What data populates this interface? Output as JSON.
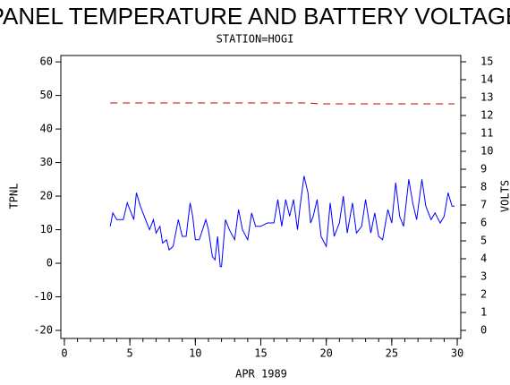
{
  "chart_data": {
    "type": "line",
    "title": "PANEL TEMPERATURE AND BATTERY VOLTAGE",
    "subtitle": "STATION=HOGI",
    "x_label": "APR 1989",
    "y_label": "TPNL",
    "y2_label": "VOLTS",
    "xlim": [
      -0.27,
      30.27
    ],
    "xticks": [
      0,
      5,
      10,
      15,
      20,
      25,
      30
    ],
    "xminorticks": [
      0,
      1,
      2,
      3,
      4,
      5,
      6,
      7,
      8,
      9,
      10,
      11,
      12,
      13,
      14,
      15,
      16,
      17,
      18,
      19,
      20,
      21,
      22,
      23,
      24,
      25,
      26,
      27,
      28,
      29,
      30
    ],
    "ylim": [
      -22.4,
      61.9
    ],
    "yticks": [
      -20,
      -10,
      0,
      10,
      20,
      30,
      40,
      50,
      60
    ],
    "y2lim": [
      -0.45,
      15.35
    ],
    "y2ticks": [
      0,
      1,
      2,
      3,
      4,
      5,
      6,
      7,
      8,
      9,
      10,
      11,
      12,
      13,
      14,
      15
    ],
    "series": [
      {
        "name": "TPNL",
        "color": "#0000ff",
        "dash": false,
        "x": [
          3.5,
          3.7,
          4,
          4.5,
          4.8,
          5,
          5.3,
          5.5,
          5.8,
          6,
          6.5,
          6.8,
          7,
          7.3,
          7.5,
          7.8,
          8,
          8.3,
          8.7,
          9,
          9.3,
          9.6,
          9.8,
          10,
          10.3,
          10.8,
          11,
          11.3,
          11.5,
          11.7,
          11.9,
          12,
          12.3,
          12.6,
          13,
          13.3,
          13.6,
          14,
          14.3,
          14.6,
          15,
          15.5,
          16,
          16.3,
          16.6,
          16.9,
          17.2,
          17.5,
          17.8,
          18,
          18.3,
          18.6,
          18.8,
          19,
          19.3,
          19.6,
          20,
          20.3,
          20.6,
          21,
          21.3,
          21.6,
          22,
          22.3,
          22.7,
          23,
          23.4,
          23.7,
          24,
          24.3,
          24.7,
          25,
          25.3,
          25.6,
          25.9,
          26.3,
          26.6,
          26.9,
          27.3,
          27.6,
          28,
          28.3,
          28.7,
          29,
          29.3,
          29.6,
          29.8
        ],
        "values": [
          11,
          15,
          13,
          13,
          18,
          16,
          13,
          21,
          17,
          15,
          10,
          13,
          9,
          11,
          6,
          7,
          4,
          5,
          13,
          8,
          8,
          18,
          14,
          7,
          7,
          13,
          10,
          2,
          1,
          8,
          -1,
          -1,
          13,
          10,
          7,
          16,
          10,
          7,
          15,
          11,
          11,
          12,
          12,
          19,
          11,
          19,
          14,
          19,
          10,
          17,
          26,
          21,
          12,
          14,
          19,
          8,
          5,
          18,
          8,
          12,
          20,
          9,
          18,
          9,
          11,
          19,
          9,
          15,
          8,
          7,
          16,
          12,
          24,
          14,
          11,
          25,
          18,
          13,
          25,
          17,
          13,
          15,
          12,
          14,
          21,
          17,
          17
        ]
      },
      {
        "name": "VOLTS",
        "color": "#cc0000",
        "dash": true,
        "axis": "y2",
        "x": [
          3.5,
          4.5,
          5.5,
          6.5,
          7.5,
          8.5,
          9.5,
          10.5,
          11.5,
          12.5,
          13.5,
          14.5,
          15.5,
          16.5,
          17.5,
          18.5,
          19.5,
          20.5,
          21.5,
          22.5,
          23.5,
          24.5,
          25.5,
          26.5,
          27.5,
          28.5,
          29.8
        ],
        "values": [
          12.7,
          12.7,
          12.7,
          12.7,
          12.7,
          12.7,
          12.7,
          12.7,
          12.7,
          12.7,
          12.7,
          12.7,
          12.7,
          12.7,
          12.7,
          12.7,
          12.65,
          12.65,
          12.65,
          12.65,
          12.65,
          12.65,
          12.65,
          12.65,
          12.65,
          12.65,
          12.65
        ]
      }
    ]
  }
}
